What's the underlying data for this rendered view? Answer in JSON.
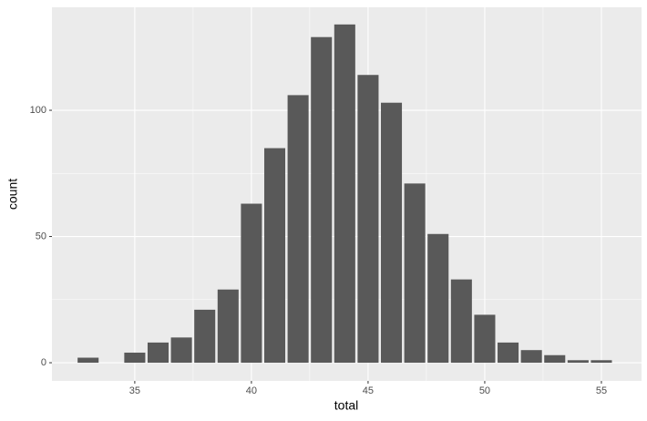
{
  "chart_data": {
    "type": "bar",
    "x_label": "total",
    "y_label": "count",
    "x": [
      33,
      35,
      36,
      37,
      38,
      39,
      40,
      41,
      42,
      43,
      44,
      45,
      46,
      47,
      48,
      49,
      50,
      51,
      52,
      53,
      54,
      55
    ],
    "values": [
      2,
      4,
      8,
      10,
      21,
      29,
      63,
      85,
      106,
      129,
      134,
      114,
      103,
      71,
      51,
      33,
      19,
      8,
      5,
      3,
      1,
      1
    ],
    "color": "#595959",
    "xlim": [
      31.45,
      56.72
    ],
    "xticks": [
      35,
      40,
      45,
      50,
      55
    ],
    "ylim": [
      -7.2,
      140.8
    ],
    "yticks": [
      0,
      50,
      100
    ],
    "grid": true
  }
}
